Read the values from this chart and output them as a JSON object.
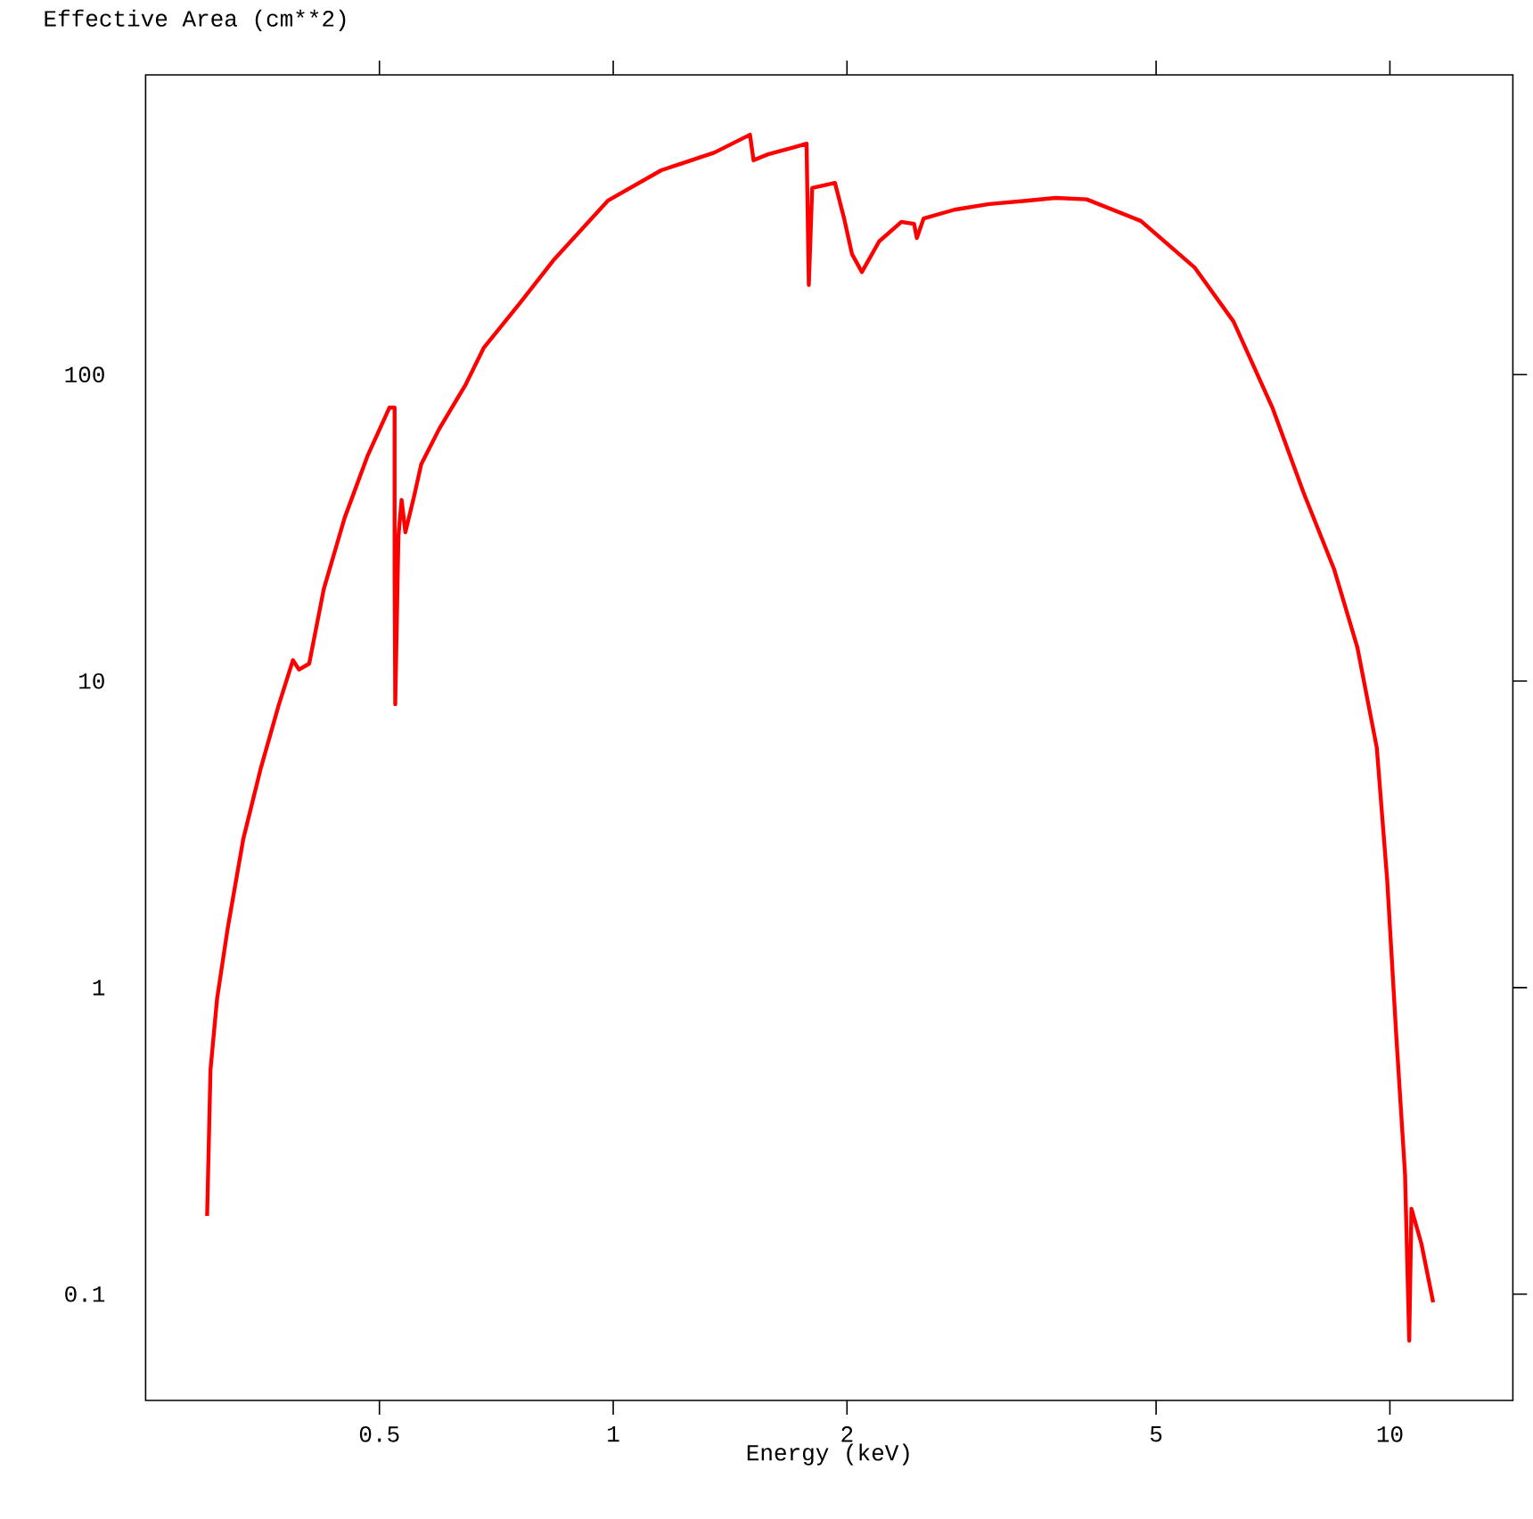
{
  "chart_data": {
    "type": "line",
    "xlabel": "Energy (keV)",
    "ylabel": "Effective Area (cm**2)",
    "log": "xy",
    "xlim": [
      0.25,
      14.4
    ],
    "ylim": [
      0.045,
      950
    ],
    "xticks": [
      0.5,
      1,
      2,
      5,
      10
    ],
    "yticks": [
      0.1,
      1,
      10,
      100
    ],
    "series": [
      {
        "color": "#ff0000",
        "x": [
          0.3,
          0.303,
          0.309,
          0.319,
          0.334,
          0.352,
          0.371,
          0.387,
          0.394,
          0.406,
          0.424,
          0.451,
          0.483,
          0.515,
          0.523,
          0.523,
          0.524,
          0.529,
          0.534,
          0.54,
          0.554,
          0.566,
          0.597,
          0.646,
          0.681,
          0.757,
          0.84,
          0.984,
          1.153,
          1.35,
          1.5,
          1.516,
          1.582,
          1.711,
          1.774,
          1.786,
          1.804,
          1.93,
          1.983,
          2.03,
          2.09,
          2.2,
          2.35,
          2.44,
          2.46,
          2.51,
          2.75,
          3.05,
          3.4,
          3.71,
          4.07,
          4.78,
          5.61,
          6.29,
          7.06,
          7.74,
          8.48,
          9.08,
          9.62,
          9.92,
          10.19,
          10.46,
          10.59,
          10.66,
          10.98,
          11.37
        ],
        "values": [
          0.18,
          0.54,
          0.92,
          1.57,
          3.06,
          5.23,
          8.36,
          11.7,
          10.9,
          11.4,
          20,
          34.1,
          54.5,
          78,
          78,
          22.8,
          8.4,
          29.8,
          39,
          30.6,
          40,
          51,
          66.5,
          93,
          122,
          170,
          238,
          369,
          464,
          530,
          606,
          500,
          523,
          552,
          567,
          196,
          406,
          422,
          323,
          247,
          216,
          272,
          315,
          310,
          279,
          323,
          345,
          360,
          369,
          377,
          373,
          317,
          223,
          149,
          78,
          41.3,
          23.1,
          12.9,
          6.06,
          2.25,
          0.7,
          0.246,
          0.0705,
          0.19,
          0.146,
          0.094
        ]
      }
    ]
  }
}
